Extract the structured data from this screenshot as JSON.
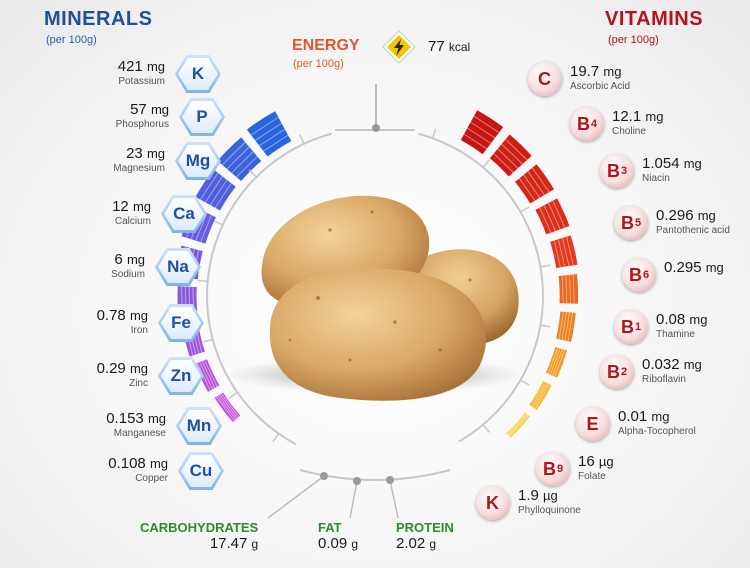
{
  "minerals": {
    "title": "MINERALS",
    "subtitle": "(per 100g)",
    "items": [
      {
        "symbol": "K",
        "amount": "421",
        "unit": "mg",
        "name": "Potassium"
      },
      {
        "symbol": "P",
        "amount": "57",
        "unit": "mg",
        "name": "Phosphorus"
      },
      {
        "symbol": "Mg",
        "amount": "23",
        "unit": "mg",
        "name": "Magnesium"
      },
      {
        "symbol": "Ca",
        "amount": "12",
        "unit": "mg",
        "name": "Calcium"
      },
      {
        "symbol": "Na",
        "amount": "6",
        "unit": "mg",
        "name": "Sodium"
      },
      {
        "symbol": "Fe",
        "amount": "0.78",
        "unit": "mg",
        "name": "Iron"
      },
      {
        "symbol": "Zn",
        "amount": "0.29",
        "unit": "mg",
        "name": "Zinc"
      },
      {
        "symbol": "Mn",
        "amount": "0.153",
        "unit": "mg",
        "name": "Manganese"
      },
      {
        "symbol": "Cu",
        "amount": "0.108",
        "unit": "mg",
        "name": "Copper"
      }
    ]
  },
  "vitamins": {
    "title": "VITAMINS",
    "subtitle": "(per 100g)",
    "items": [
      {
        "letter": "C",
        "sub": "",
        "amount": "19.7",
        "unit": "mg",
        "name": "Ascorbic Acid"
      },
      {
        "letter": "B",
        "sub": "4",
        "amount": "12.1",
        "unit": "mg",
        "name": "Choline"
      },
      {
        "letter": "B",
        "sub": "3",
        "amount": "1.054",
        "unit": "mg",
        "name": "Niacin"
      },
      {
        "letter": "B",
        "sub": "5",
        "amount": "0.296",
        "unit": "mg",
        "name": "Pantothenic acid"
      },
      {
        "letter": "B",
        "sub": "6",
        "amount": "0.295",
        "unit": "mg",
        "name": ""
      },
      {
        "letter": "B",
        "sub": "1",
        "amount": "0.08",
        "unit": "mg",
        "name": "Thamine"
      },
      {
        "letter": "B",
        "sub": "2",
        "amount": "0.032",
        "unit": "mg",
        "name": "Riboflavin"
      },
      {
        "letter": "E",
        "sub": "",
        "amount": "0.01",
        "unit": "mg",
        "name": "Alpha-Tocopherol"
      },
      {
        "letter": "B",
        "sub": "9",
        "amount": "16",
        "unit": "µg",
        "name": "Folate"
      },
      {
        "letter": "K",
        "sub": "",
        "amount": "1.9",
        "unit": "µg",
        "name": "Phylloquinone"
      }
    ]
  },
  "energy": {
    "label": "ENERGY",
    "subtitle": "(per 100g)",
    "amount": "77",
    "unit": "kcal",
    "icon": "lightning-bolt-icon"
  },
  "macros": [
    {
      "key": "carbohydrates",
      "label": "CARBOHYDRATES",
      "amount": "17.47",
      "unit": "g"
    },
    {
      "key": "fat",
      "label": "FAT",
      "amount": "0.09",
      "unit": "g"
    },
    {
      "key": "protein",
      "label": "PROTEIN",
      "amount": "2.02",
      "unit": "g"
    }
  ],
  "colors": {
    "minerals_blue": "#1f4f9f",
    "vitamins_red": "#b5121b",
    "energy_orange": "#e0582a",
    "macro_green": "#2e8b2e",
    "energy_yellow": "#f5c400"
  }
}
